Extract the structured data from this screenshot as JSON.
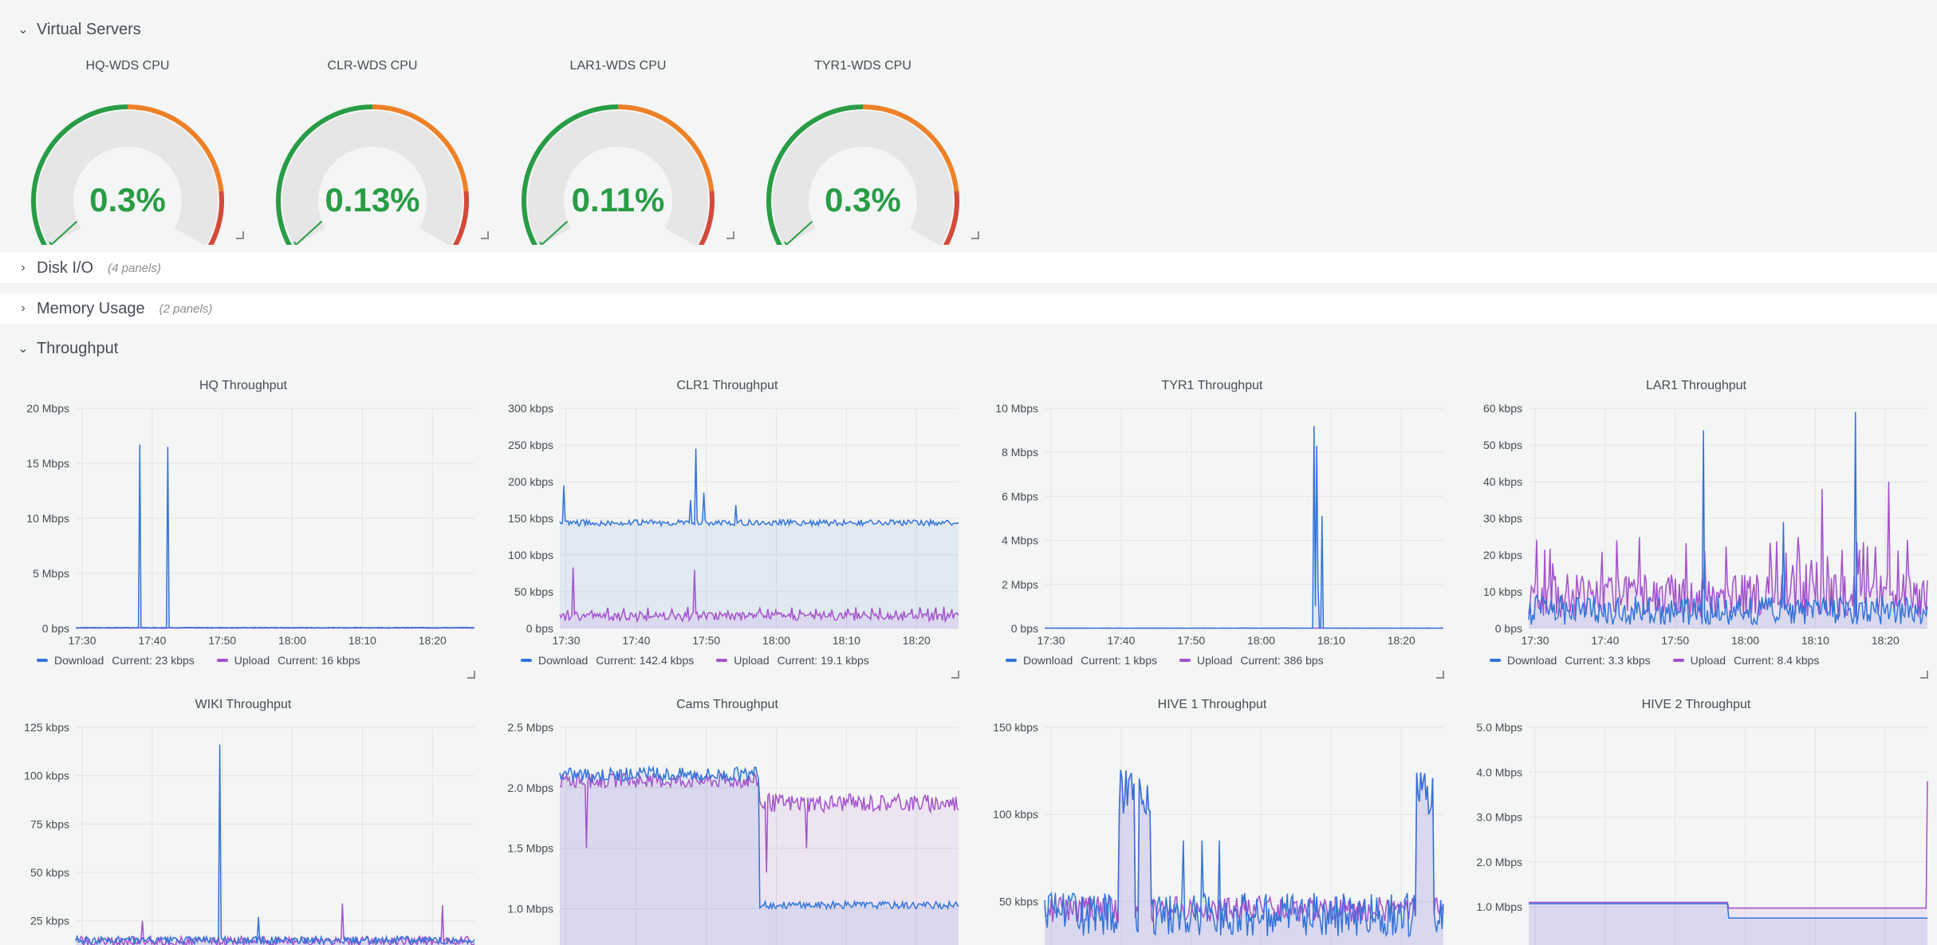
{
  "rows": {
    "virtual": {
      "title": "Virtual Servers"
    },
    "disk": {
      "title": "Disk I/O",
      "meta": "(4 panels)"
    },
    "memory": {
      "title": "Memory Usage",
      "meta": "(2 panels)"
    },
    "throughput": {
      "title": "Throughput"
    }
  },
  "gauges": [
    {
      "title": "HQ-WDS CPU",
      "value": "0.3%",
      "pct": 0.3
    },
    {
      "title": "CLR-WDS CPU",
      "value": "0.13%",
      "pct": 0.13
    },
    {
      "title": "LAR1-WDS CPU",
      "value": "0.11%",
      "pct": 0.11
    },
    {
      "title": "TYR1-WDS CPU",
      "value": "0.3%",
      "pct": 0.3
    }
  ],
  "colors": {
    "green": "#299c46",
    "orange": "#ed8128",
    "red": "#d44a3a",
    "download": "#3274d9",
    "upload": "#a352cc"
  },
  "x_ticks": [
    "17:30",
    "17:40",
    "17:50",
    "18:00",
    "18:10",
    "18:20"
  ],
  "panels": [
    {
      "title": "HQ Throughput",
      "ymax": 20,
      "ticks": [
        "0 bps",
        "5 Mbps",
        "10 Mbps",
        "15 Mbps",
        "20 Mbps"
      ],
      "legend": {
        "download_label": "Download",
        "download_current": "Current: 23 kbps",
        "upload_label": "Upload",
        "upload_current": "Current: 16 kbps"
      }
    },
    {
      "title": "CLR1 Throughput",
      "ymax": 300,
      "ticks": [
        "0 bps",
        "50 kbps",
        "100 kbps",
        "150 kbps",
        "200 kbps",
        "250 kbps",
        "300 kbps"
      ],
      "legend": {
        "download_label": "Download",
        "download_current": "Current: 142.4 kbps",
        "upload_label": "Upload",
        "upload_current": "Current: 19.1 kbps"
      }
    },
    {
      "title": "TYR1 Throughput",
      "ymax": 10,
      "ticks": [
        "0 bps",
        "2 Mbps",
        "4 Mbps",
        "6 Mbps",
        "8 Mbps",
        "10 Mbps"
      ],
      "legend": {
        "download_label": "Download",
        "download_current": "Current: 1 kbps",
        "upload_label": "Upload",
        "upload_current": "Current: 386 bps"
      }
    },
    {
      "title": "LAR1 Throughput",
      "ymax": 60,
      "ticks": [
        "0 bps",
        "10 kbps",
        "20 kbps",
        "30 kbps",
        "40 kbps",
        "50 kbps",
        "60 kbps"
      ],
      "legend": {
        "download_label": "Download",
        "download_current": "Current: 3.3 kbps",
        "upload_label": "Upload",
        "upload_current": "Current: 8.4 kbps"
      }
    },
    {
      "title": "WIKI Throughput",
      "ymin": 12.5,
      "ymax": 125,
      "ticks": [
        "25 kbps",
        "50 kbps",
        "75 kbps",
        "100 kbps",
        "125 kbps"
      ]
    },
    {
      "title": "Cams Throughput",
      "ymin": 0.7,
      "ymax": 2.5,
      "ticks": [
        "1.0 Mbps",
        "1.5 Mbps",
        "2.0 Mbps",
        "2.5 Mbps"
      ]
    },
    {
      "title": "HIVE 1 Throughput",
      "ymin": 25,
      "ymax": 150,
      "ticks": [
        "50 kbps",
        "100 kbps",
        "150 kbps"
      ]
    },
    {
      "title": "HIVE 2 Throughput",
      "ymin": 0.15,
      "ymax": 5.0,
      "ticks": [
        "1.0 Mbps",
        "2.0 Mbps",
        "3.0 Mbps",
        "4.0 Mbps",
        "5.0 Mbps"
      ]
    }
  ]
}
